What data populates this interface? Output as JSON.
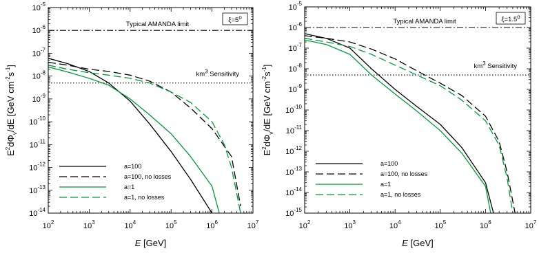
{
  "chart_data": [
    {
      "type": "line",
      "x_scale": "log",
      "y_scale": "log",
      "xlim": [
        100,
        10000000
      ],
      "ylim": [
        1e-14,
        1e-05
      ],
      "x_ticks": [
        {
          "base": "10",
          "exp": "2"
        },
        {
          "base": "10",
          "exp": "3"
        },
        {
          "base": "10",
          "exp": "4"
        },
        {
          "base": "10",
          "exp": "5"
        },
        {
          "base": "10",
          "exp": "6"
        },
        {
          "base": "10",
          "exp": "7"
        }
      ],
      "y_ticks": [
        {
          "base": "10",
          "exp": "-14"
        },
        {
          "base": "10",
          "exp": "-13"
        },
        {
          "base": "10",
          "exp": "-12"
        },
        {
          "base": "10",
          "exp": "-11"
        },
        {
          "base": "10",
          "exp": "-10"
        },
        {
          "base": "10",
          "exp": "-9"
        },
        {
          "base": "10",
          "exp": "-8"
        },
        {
          "base": "10",
          "exp": "-7"
        },
        {
          "base": "10",
          "exp": "-6"
        },
        {
          "base": "10",
          "exp": "-5"
        }
      ],
      "xlabel": {
        "var": "E",
        "unit": " [GeV]"
      },
      "ylabel": {
        "pre": "E",
        "p1": "2",
        "mid": "dΦ",
        "sub": "ν",
        "post": "/dE [GeV cm",
        "p2": "-2",
        "s": "s",
        "p3": "-1",
        "end": "]"
      },
      "box_label": {
        "text": "ξ=5",
        "sup": "o"
      },
      "reference_lines": [
        {
          "label": "Typical AMANDA limit",
          "y": 1e-06,
          "style": "dashdot"
        },
        {
          "label_base": "km",
          "label_sup": "3",
          "label_rest": " Sensitivity",
          "y": 5e-09,
          "style": "dotted"
        }
      ],
      "legend_position": "lower-left",
      "series": [
        {
          "name": "a=100",
          "color": "#000000",
          "dash": "solid",
          "points": [
            [
              100,
              6e-08
            ],
            [
              300,
              3.5e-08
            ],
            [
              1000,
              1.6e-08
            ],
            [
              3000,
              5e-09
            ],
            [
              10000,
              8e-10
            ],
            [
              30000,
              8e-11
            ],
            [
              100000,
              5e-12
            ],
            [
              300000,
              3e-13
            ],
            [
              1000000,
              1e-14
            ]
          ]
        },
        {
          "name": "a=100, no losses",
          "color": "#000000",
          "dash": "longdash",
          "points": [
            [
              100,
              4e-08
            ],
            [
              300,
              3e-08
            ],
            [
              1000,
              2e-08
            ],
            [
              3000,
              1.6e-08
            ],
            [
              10000,
              1.1e-08
            ],
            [
              30000,
              6e-09
            ],
            [
              100000,
              2e-09
            ],
            [
              300000,
              4e-10
            ],
            [
              1000000,
              5e-11
            ],
            [
              3000000,
              3e-12
            ],
            [
              5000000,
              2e-14
            ]
          ]
        },
        {
          "name": "a=1",
          "color": "#009933",
          "dash": "solid",
          "points": [
            [
              100,
              2.5e-08
            ],
            [
              300,
              1.5e-08
            ],
            [
              1000,
              8e-09
            ],
            [
              3000,
              4e-09
            ],
            [
              10000,
              1e-09
            ],
            [
              30000,
              2e-10
            ],
            [
              100000,
              3e-11
            ],
            [
              300000,
              3e-12
            ],
            [
              1000000,
              1.5e-13
            ],
            [
              1500000,
              1e-14
            ]
          ]
        },
        {
          "name": "a=1, no losses",
          "color": "#009933",
          "dash": "longdash",
          "points": [
            [
              100,
              3e-08
            ],
            [
              300,
              2e-08
            ],
            [
              1000,
              1.4e-08
            ],
            [
              3000,
              1.1e-08
            ],
            [
              10000,
              8e-09
            ],
            [
              30000,
              5e-09
            ],
            [
              100000,
              2e-09
            ],
            [
              300000,
              7e-10
            ],
            [
              1000000,
              1e-10
            ],
            [
              2000000,
              1e-11
            ],
            [
              3000000,
              1e-12
            ],
            [
              5000000,
              1e-14
            ]
          ]
        }
      ]
    },
    {
      "type": "line",
      "x_scale": "log",
      "y_scale": "log",
      "xlim": [
        100,
        10000000
      ],
      "ylim": [
        1e-15,
        1e-05
      ],
      "x_ticks": [
        {
          "base": "10",
          "exp": "2"
        },
        {
          "base": "10",
          "exp": "3"
        },
        {
          "base": "10",
          "exp": "4"
        },
        {
          "base": "10",
          "exp": "5"
        },
        {
          "base": "10",
          "exp": "6"
        },
        {
          "base": "10",
          "exp": "7"
        }
      ],
      "y_ticks": [
        {
          "base": "10",
          "exp": "-15"
        },
        {
          "base": "10",
          "exp": "-14"
        },
        {
          "base": "10",
          "exp": "-13"
        },
        {
          "base": "10",
          "exp": "-12"
        },
        {
          "base": "10",
          "exp": "-11"
        },
        {
          "base": "10",
          "exp": "-10"
        },
        {
          "base": "10",
          "exp": "-9"
        },
        {
          "base": "10",
          "exp": "-8"
        },
        {
          "base": "10",
          "exp": "-7"
        },
        {
          "base": "10",
          "exp": "-6"
        },
        {
          "base": "10",
          "exp": "-5"
        }
      ],
      "xlabel": {
        "var": "E",
        "unit": " [GeV]"
      },
      "ylabel": {
        "pre": "E",
        "p1": "2",
        "mid": "dΦ",
        "sub": "ν",
        "post": "/dE [GeV cm",
        "p2": "-2",
        "s": "s",
        "p3": "-1",
        "end": "]"
      },
      "box_label": {
        "text": "ξ=1.5",
        "sup": "o"
      },
      "reference_lines": [
        {
          "label": "Typical AMANDA limit",
          "y": 1e-06,
          "style": "dashdot"
        },
        {
          "label_base": "km",
          "label_sup": "3",
          "label_rest": " Sensitivity",
          "y": 5e-09,
          "style": "dotted"
        }
      ],
      "legend_position": "lower-left",
      "series": [
        {
          "name": "a=100",
          "color": "#000000",
          "dash": "solid",
          "points": [
            [
              100,
              5e-07
            ],
            [
              300,
              3e-07
            ],
            [
              1000,
              1e-07
            ],
            [
              3000,
              1e-08
            ],
            [
              10000,
              1e-09
            ],
            [
              30000,
              1.5e-10
            ],
            [
              100000,
              2e-11
            ],
            [
              300000,
              1.5e-12
            ],
            [
              1000000,
              3e-14
            ],
            [
              1500000,
              1e-15
            ]
          ]
        },
        {
          "name": "a=100, no losses",
          "color": "#000000",
          "dash": "longdash",
          "points": [
            [
              100,
              4e-07
            ],
            [
              300,
              3e-07
            ],
            [
              1000,
              2e-07
            ],
            [
              3000,
              9e-08
            ],
            [
              10000,
              3e-08
            ],
            [
              30000,
              8e-09
            ],
            [
              100000,
              2e-09
            ],
            [
              300000,
              5e-10
            ],
            [
              1000000,
              5e-11
            ],
            [
              2000000,
              3e-12
            ],
            [
              3000000,
              1e-13
            ],
            [
              4500000,
              1e-15
            ]
          ]
        },
        {
          "name": "a=1",
          "color": "#009933",
          "dash": "solid",
          "points": [
            [
              100,
              2.5e-07
            ],
            [
              300,
              1.5e-07
            ],
            [
              1000,
              5e-08
            ],
            [
              3000,
              5e-09
            ],
            [
              10000,
              6e-10
            ],
            [
              30000,
              9e-11
            ],
            [
              100000,
              1e-11
            ],
            [
              300000,
              8e-13
            ],
            [
              1000000,
              2e-14
            ],
            [
              1300000,
              1e-15
            ]
          ]
        },
        {
          "name": "a=1, no losses",
          "color": "#009933",
          "dash": "longdash",
          "points": [
            [
              100,
              3e-07
            ],
            [
              300,
              2e-07
            ],
            [
              1000,
              1.2e-07
            ],
            [
              3000,
              5e-08
            ],
            [
              10000,
              1.5e-08
            ],
            [
              30000,
              5e-09
            ],
            [
              100000,
              1.5e-09
            ],
            [
              300000,
              3e-10
            ],
            [
              1000000,
              3e-11
            ],
            [
              2000000,
              2e-12
            ],
            [
              3000000,
              5e-14
            ],
            [
              4000000,
              1e-15
            ]
          ]
        }
      ]
    }
  ]
}
